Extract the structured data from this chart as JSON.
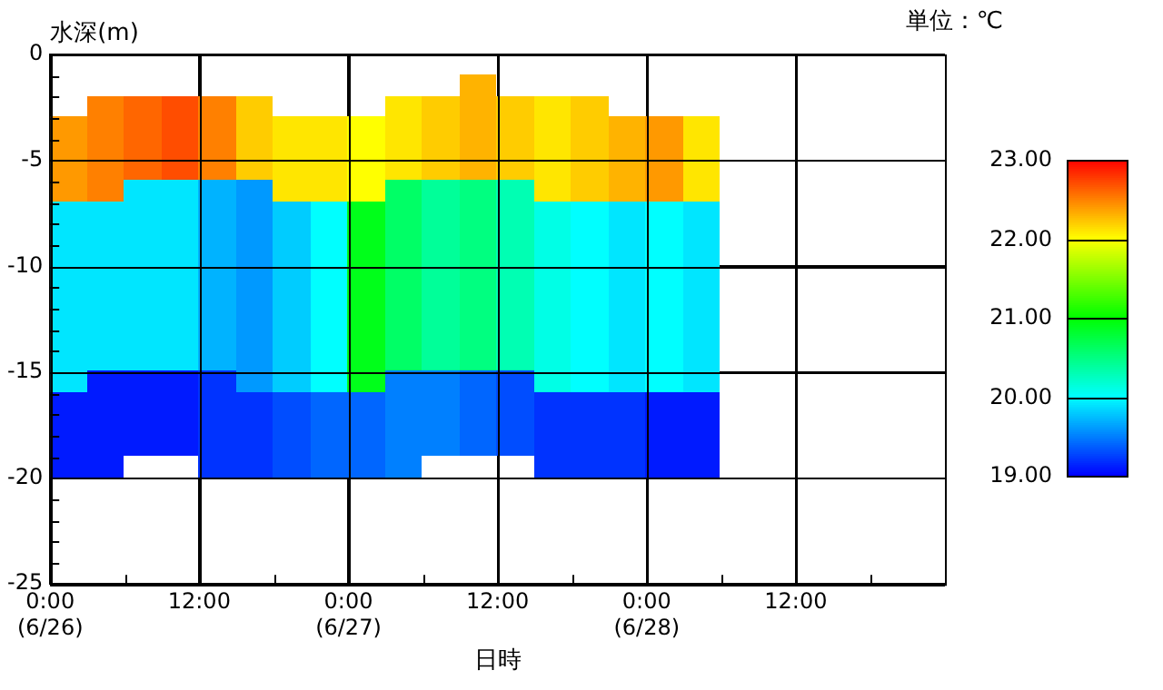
{
  "chart_data": {
    "type": "scatter",
    "ylabel": "水深(m)",
    "xlabel": "日時",
    "clabel": "単位：℃",
    "marker": "square",
    "x": [
      "--06-26T01:30",
      "--06-26T01:30",
      "--06-26T01:30",
      "--06-26T01:30",
      "--06-26T01:30",
      "--06-26T01:30",
      "--06-26T01:30",
      "--06-26T01:30",
      "--06-26T01:30",
      "--06-26T01:30",
      "--06-26T01:30",
      "--06-26T01:30",
      "--06-26T01:30",
      "--06-26T01:30",
      "--06-26T01:30",
      "--06-26T01:30",
      "--06-26T01:30",
      "--06-26T04:30",
      "--06-26T04:30",
      "--06-26T04:30",
      "--06-26T04:30",
      "--06-26T04:30",
      "--06-26T04:30",
      "--06-26T04:30",
      "--06-26T04:30",
      "--06-26T04:30",
      "--06-26T04:30",
      "--06-26T04:30",
      "--06-26T04:30",
      "--06-26T04:30",
      "--06-26T04:30",
      "--06-26T04:30",
      "--06-26T04:30",
      "--06-26T04:30",
      "--06-26T04:30",
      "--06-26T07:30",
      "--06-26T07:30",
      "--06-26T07:30",
      "--06-26T07:30",
      "--06-26T07:30",
      "--06-26T07:30",
      "--06-26T07:30",
      "--06-26T07:30",
      "--06-26T07:30",
      "--06-26T07:30",
      "--06-26T07:30",
      "--06-26T07:30",
      "--06-26T07:30",
      "--06-26T07:30",
      "--06-26T07:30",
      "--06-26T07:30",
      "--06-26T07:30",
      "--06-26T10:30",
      "--06-26T10:30",
      "--06-26T10:30",
      "--06-26T10:30",
      "--06-26T10:30",
      "--06-26T10:30",
      "--06-26T10:30",
      "--06-26T10:30",
      "--06-26T10:30",
      "--06-26T10:30",
      "--06-26T10:30",
      "--06-26T10:30",
      "--06-26T10:30",
      "--06-26T10:30",
      "--06-26T10:30",
      "--06-26T10:30",
      "--06-26T10:30",
      "--06-26T13:30",
      "--06-26T13:30",
      "--06-26T13:30",
      "--06-26T13:30",
      "--06-26T13:30",
      "--06-26T13:30",
      "--06-26T13:30",
      "--06-26T13:30",
      "--06-26T13:30",
      "--06-26T13:30",
      "--06-26T13:30",
      "--06-26T13:30",
      "--06-26T13:30",
      "--06-26T13:30",
      "--06-26T13:30",
      "--06-26T13:30",
      "--06-26T13:30",
      "--06-26T13:30",
      "--06-26T16:30",
      "--06-26T16:30",
      "--06-26T16:30",
      "--06-26T16:30",
      "--06-26T16:30",
      "--06-26T16:30",
      "--06-26T16:30",
      "--06-26T16:30",
      "--06-26T16:30",
      "--06-26T16:30",
      "--06-26T16:30",
      "--06-26T16:30",
      "--06-26T16:30",
      "--06-26T16:30",
      "--06-26T16:30",
      "--06-26T16:30",
      "--06-26T16:30",
      "--06-26T16:30",
      "--06-26T19:30",
      "--06-26T19:30",
      "--06-26T19:30",
      "--06-26T19:30",
      "--06-26T19:30",
      "--06-26T19:30",
      "--06-26T19:30",
      "--06-26T19:30",
      "--06-26T19:30",
      "--06-26T19:30",
      "--06-26T19:30",
      "--06-26T19:30",
      "--06-26T19:30",
      "--06-26T19:30",
      "--06-26T19:30",
      "--06-26T19:30",
      "--06-26T19:30",
      "--06-26T22:30",
      "--06-26T22:30",
      "--06-26T22:30",
      "--06-26T22:30",
      "--06-26T22:30",
      "--06-26T22:30",
      "--06-26T22:30",
      "--06-26T22:30",
      "--06-26T22:30",
      "--06-26T22:30",
      "--06-26T22:30",
      "--06-26T22:30",
      "--06-26T22:30",
      "--06-26T22:30",
      "--06-26T22:30",
      "--06-26T22:30",
      "--06-26T22:30",
      "--06-27T01:30",
      "--06-27T01:30",
      "--06-27T01:30",
      "--06-27T01:30",
      "--06-27T01:30",
      "--06-27T01:30",
      "--06-27T01:30",
      "--06-27T01:30",
      "--06-27T01:30",
      "--06-27T01:30",
      "--06-27T01:30",
      "--06-27T01:30",
      "--06-27T01:30",
      "--06-27T01:30",
      "--06-27T01:30",
      "--06-27T01:30",
      "--06-27T01:30",
      "--06-27T04:30",
      "--06-27T04:30",
      "--06-27T04:30",
      "--06-27T04:30",
      "--06-27T04:30",
      "--06-27T04:30",
      "--06-27T04:30",
      "--06-27T04:30",
      "--06-27T04:30",
      "--06-27T04:30",
      "--06-27T04:30",
      "--06-27T04:30",
      "--06-27T04:30",
      "--06-27T04:30",
      "--06-27T04:30",
      "--06-27T04:30",
      "--06-27T04:30",
      "--06-27T04:30",
      "--06-27T07:30",
      "--06-27T07:30",
      "--06-27T07:30",
      "--06-27T07:30",
      "--06-27T07:30",
      "--06-27T07:30",
      "--06-27T07:30",
      "--06-27T07:30",
      "--06-27T07:30",
      "--06-27T07:30",
      "--06-27T07:30",
      "--06-27T07:30",
      "--06-27T07:30",
      "--06-27T07:30",
      "--06-27T07:30",
      "--06-27T07:30",
      "--06-27T07:30",
      "--06-27T10:30",
      "--06-27T10:30",
      "--06-27T10:30",
      "--06-27T10:30",
      "--06-27T10:30",
      "--06-27T10:30",
      "--06-27T10:30",
      "--06-27T10:30",
      "--06-27T10:30",
      "--06-27T10:30",
      "--06-27T10:30",
      "--06-27T10:30",
      "--06-27T10:30",
      "--06-27T10:30",
      "--06-27T10:30",
      "--06-27T10:30",
      "--06-27T10:30",
      "--06-27T10:30",
      "--06-27T13:30",
      "--06-27T13:30",
      "--06-27T13:30",
      "--06-27T13:30",
      "--06-27T13:30",
      "--06-27T13:30",
      "--06-27T13:30",
      "--06-27T13:30",
      "--06-27T13:30",
      "--06-27T13:30",
      "--06-27T13:30",
      "--06-27T13:30",
      "--06-27T13:30",
      "--06-27T13:30",
      "--06-27T13:30",
      "--06-27T13:30",
      "--06-27T13:30",
      "--06-27T16:30",
      "--06-27T16:30",
      "--06-27T16:30",
      "--06-27T16:30",
      "--06-27T16:30",
      "--06-27T16:30",
      "--06-27T16:30",
      "--06-27T16:30",
      "--06-27T16:30",
      "--06-27T16:30",
      "--06-27T16:30",
      "--06-27T16:30",
      "--06-27T16:30",
      "--06-27T16:30",
      "--06-27T16:30",
      "--06-27T16:30",
      "--06-27T16:30",
      "--06-27T16:30",
      "--06-27T19:30",
      "--06-27T19:30",
      "--06-27T19:30",
      "--06-27T19:30",
      "--06-27T19:30",
      "--06-27T19:30",
      "--06-27T19:30",
      "--06-27T19:30",
      "--06-27T19:30",
      "--06-27T19:30",
      "--06-27T19:30",
      "--06-27T19:30",
      "--06-27T19:30",
      "--06-27T19:30",
      "--06-27T19:30",
      "--06-27T19:30",
      "--06-27T19:30",
      "--06-27T19:30",
      "--06-27T22:30",
      "--06-27T22:30",
      "--06-27T22:30",
      "--06-27T22:30",
      "--06-27T22:30",
      "--06-27T22:30",
      "--06-27T22:30",
      "--06-27T22:30",
      "--06-27T22:30",
      "--06-27T22:30",
      "--06-27T22:30",
      "--06-27T22:30",
      "--06-27T22:30",
      "--06-27T22:30",
      "--06-27T22:30",
      "--06-27T22:30",
      "--06-27T22:30",
      "--06-28T01:30",
      "--06-28T01:30",
      "--06-28T01:30",
      "--06-28T01:30",
      "--06-28T01:30",
      "--06-28T01:30",
      "--06-28T01:30",
      "--06-28T01:30",
      "--06-28T01:30",
      "--06-28T01:30",
      "--06-28T01:30",
      "--06-28T01:30",
      "--06-28T01:30",
      "--06-28T01:30",
      "--06-28T01:30",
      "--06-28T01:30",
      "--06-28T01:30",
      "--06-28T04:30",
      "--06-28T04:30",
      "--06-28T04:30",
      "--06-28T04:30",
      "--06-28T04:30",
      "--06-28T04:30",
      "--06-28T04:30",
      "--06-28T04:30",
      "--06-28T04:30",
      "--06-28T04:30",
      "--06-28T04:30",
      "--06-28T04:30",
      "--06-28T04:30",
      "--06-28T04:30",
      "--06-28T04:30",
      "--06-28T04:30",
      "--06-28T04:30"
    ],
    "values": [
      -3.5,
      -4.5,
      -5.5,
      -6.5,
      -7.5,
      -8.5,
      -9.5,
      -10.5,
      -11.5,
      -12.5,
      -13.5,
      -14.5,
      -15.5,
      -16.5,
      -17.5,
      -18.5,
      -19.5,
      -2.5,
      -3.5,
      -4.5,
      -5.5,
      -6.5,
      -7.5,
      -8.5,
      -9.5,
      -10.5,
      -11.5,
      -12.5,
      -13.5,
      -14.5,
      -15.5,
      -16.5,
      -17.5,
      -18.5,
      -19.5,
      -2.5,
      -3.5,
      -4.5,
      -5.5,
      -6.5,
      -7.5,
      -8.5,
      -9.5,
      -10.5,
      -11.5,
      -12.5,
      -13.5,
      -14.5,
      -15.5,
      -16.5,
      -17.5,
      -18.5,
      -2.5,
      -3.5,
      -4.5,
      -5.5,
      -6.5,
      -7.5,
      -8.5,
      -9.5,
      -10.5,
      -11.5,
      -12.5,
      -13.5,
      -14.5,
      -15.5,
      -16.5,
      -17.5,
      -18.5,
      -2.5,
      -3.5,
      -4.5,
      -5.5,
      -6.5,
      -7.5,
      -8.5,
      -9.5,
      -10.5,
      -11.5,
      -12.5,
      -13.5,
      -14.5,
      -15.5,
      -16.5,
      -17.5,
      -18.5,
      -19.5,
      -2.5,
      -3.5,
      -4.5,
      -5.5,
      -6.5,
      -7.5,
      -8.5,
      -9.5,
      -10.5,
      -11.5,
      -12.5,
      -13.5,
      -14.5,
      -15.5,
      -16.5,
      -17.5,
      -18.5,
      -19.5,
      -3.5,
      -4.5,
      -5.5,
      -6.5,
      -7.5,
      -8.5,
      -9.5,
      -10.5,
      -11.5,
      -12.5,
      -13.5,
      -14.5,
      -15.5,
      -16.5,
      -17.5,
      -18.5,
      -19.5,
      -3.5,
      -4.5,
      -5.5,
      -6.5,
      -7.5,
      -8.5,
      -9.5,
      -10.5,
      -11.5,
      -12.5,
      -13.5,
      -14.5,
      -15.5,
      -16.5,
      -17.5,
      -18.5,
      -19.5,
      -3.5,
      -4.5,
      -5.5,
      -6.5,
      -7.5,
      -8.5,
      -9.5,
      -10.5,
      -11.5,
      -12.5,
      -13.5,
      -14.5,
      -15.5,
      -16.5,
      -17.5,
      -18.5,
      -19.5,
      -2.5,
      -3.5,
      -4.5,
      -5.5,
      -6.5,
      -7.5,
      -8.5,
      -9.5,
      -10.5,
      -11.5,
      -12.5,
      -13.5,
      -14.5,
      -15.5,
      -16.5,
      -17.5,
      -18.5,
      -19.5,
      -2.5,
      -3.5,
      -4.5,
      -5.5,
      -6.5,
      -7.5,
      -8.5,
      -9.5,
      -10.5,
      -11.5,
      -12.5,
      -13.5,
      -14.5,
      -15.5,
      -16.5,
      -17.5,
      -18.5,
      -1.5,
      -2.5,
      -3.5,
      -4.5,
      -5.5,
      -6.5,
      -7.5,
      -8.5,
      -9.5,
      -10.5,
      -11.5,
      -12.5,
      -13.5,
      -14.5,
      -15.5,
      -16.5,
      -17.5,
      -18.5,
      -2.5,
      -3.5,
      -4.5,
      -5.5,
      -6.5,
      -7.5,
      -8.5,
      -9.5,
      -10.5,
      -11.5,
      -12.5,
      -13.5,
      -14.5,
      -15.5,
      -16.5,
      -17.5,
      -18.5,
      -2.5,
      -3.5,
      -4.5,
      -5.5,
      -6.5,
      -7.5,
      -8.5,
      -9.5,
      -10.5,
      -11.5,
      -12.5,
      -13.5,
      -14.5,
      -15.5,
      -16.5,
      -17.5,
      -18.5,
      -19.5,
      -2.5,
      -3.5,
      -4.5,
      -5.5,
      -6.5,
      -7.5,
      -8.5,
      -9.5,
      -10.5,
      -11.5,
      -12.5,
      -13.5,
      -14.5,
      -15.5,
      -16.5,
      -17.5,
      -18.5,
      -19.5,
      -3.5,
      -4.5,
      -5.5,
      -6.5,
      -7.5,
      -8.5,
      -9.5,
      -10.5,
      -11.5,
      -12.5,
      -13.5,
      -14.5,
      -15.5,
      -16.5,
      -17.5,
      -18.5,
      -19.5,
      -3.5,
      -4.5,
      -5.5,
      -6.5,
      -7.5,
      -8.5,
      -9.5,
      -10.5,
      -11.5,
      -12.5,
      -13.5,
      -14.5,
      -15.5,
      -16.5,
      -17.5,
      -18.5,
      -19.5,
      -3.5,
      -4.5,
      -5.5,
      -6.5,
      -7.5,
      -8.5,
      -9.5,
      -10.5,
      -11.5,
      -12.5,
      -13.5,
      -14.5,
      -15.5,
      -16.5,
      -17.5,
      -18.5,
      -19.5
    ],
    "cvalues": [
      22.4,
      22.4,
      22.4,
      22.4,
      19.9,
      19.9,
      19.9,
      19.9,
      19.9,
      19.9,
      19.9,
      19.9,
      19.9,
      19.1,
      19.1,
      19.1,
      19.1,
      22.5,
      22.5,
      22.5,
      22.5,
      22.5,
      19.9,
      19.9,
      19.9,
      19.9,
      19.9,
      19.9,
      19.9,
      19.9,
      19.1,
      19.1,
      19.1,
      19.1,
      19.1,
      22.6,
      22.6,
      22.6,
      22.6,
      19.9,
      19.9,
      19.9,
      19.9,
      19.9,
      19.9,
      19.9,
      19.9,
      19.9,
      19.1,
      19.1,
      19.1,
      19.1,
      22.7,
      22.7,
      22.7,
      22.7,
      19.9,
      19.9,
      19.9,
      19.9,
      19.9,
      19.9,
      19.9,
      19.9,
      19.9,
      19.1,
      19.1,
      19.1,
      19.1,
      22.5,
      22.5,
      22.5,
      22.5,
      19.7,
      19.7,
      19.7,
      19.7,
      19.7,
      19.7,
      19.7,
      19.7,
      19.7,
      19.2,
      19.2,
      19.2,
      19.2,
      19.2,
      22.2,
      22.2,
      22.2,
      22.2,
      19.6,
      19.6,
      19.6,
      19.6,
      19.6,
      19.6,
      19.6,
      19.6,
      19.6,
      19.6,
      19.2,
      19.2,
      19.2,
      19.2,
      22.1,
      22.1,
      22.1,
      22.1,
      19.8,
      19.8,
      19.8,
      19.8,
      19.8,
      19.8,
      19.8,
      19.8,
      19.8,
      19.3,
      19.3,
      19.3,
      19.3,
      22.1,
      22.1,
      22.1,
      22.1,
      20.0,
      20.0,
      20.0,
      20.0,
      20.0,
      20.0,
      20.0,
      20.0,
      20.0,
      19.4,
      19.4,
      19.4,
      19.4,
      22.0,
      22.0,
      22.0,
      22.0,
      20.9,
      20.9,
      20.9,
      20.9,
      20.9,
      20.9,
      20.9,
      20.9,
      20.9,
      19.4,
      19.4,
      19.4,
      19.4,
      22.1,
      22.1,
      22.1,
      22.1,
      20.6,
      20.6,
      20.6,
      20.6,
      20.6,
      20.6,
      20.6,
      20.6,
      20.6,
      19.5,
      19.5,
      19.5,
      19.5,
      19.5,
      22.2,
      22.2,
      22.2,
      22.2,
      20.4,
      20.4,
      20.4,
      20.4,
      20.4,
      20.4,
      20.4,
      20.4,
      20.4,
      19.5,
      19.5,
      19.5,
      19.5,
      22.3,
      22.3,
      22.3,
      22.3,
      22.3,
      20.5,
      20.5,
      20.5,
      20.5,
      20.5,
      20.5,
      20.5,
      20.5,
      20.5,
      19.4,
      19.4,
      19.4,
      19.4,
      22.2,
      22.2,
      22.2,
      22.2,
      20.3,
      20.3,
      20.3,
      20.3,
      20.3,
      20.3,
      20.3,
      20.3,
      20.3,
      19.3,
      19.3,
      19.3,
      19.3,
      22.1,
      22.1,
      22.1,
      22.1,
      22.1,
      20.1,
      20.1,
      20.1,
      20.1,
      20.1,
      20.1,
      20.1,
      20.1,
      20.1,
      19.2,
      19.2,
      19.2,
      19.2,
      22.2,
      22.2,
      22.2,
      22.2,
      22.2,
      20.0,
      20.0,
      20.0,
      20.0,
      20.0,
      20.0,
      20.0,
      20.0,
      20.0,
      19.2,
      19.2,
      19.2,
      19.2,
      22.3,
      22.3,
      22.3,
      22.3,
      19.9,
      19.9,
      19.9,
      19.9,
      19.9,
      19.9,
      19.9,
      19.9,
      19.9,
      19.2,
      19.2,
      19.2,
      19.2,
      22.4,
      22.4,
      22.4,
      22.4,
      20.0,
      20.0,
      20.0,
      20.0,
      20.0,
      20.0,
      20.0,
      20.0,
      20.0,
      19.1,
      19.1,
      19.1,
      19.1,
      22.1,
      22.1,
      22.1,
      22.1,
      19.9,
      19.9,
      19.9,
      19.9,
      19.9,
      19.9,
      19.9,
      19.9,
      19.9,
      19.1,
      19.1,
      19.1,
      19.1
    ],
    "xlim": [
      "--06-26T00:00",
      "--06-29T00:00"
    ],
    "xticks": [
      {
        "value": "--06-26T00:00",
        "label": "0:00\n(6/26)"
      },
      {
        "value": "--06-26T06:00",
        "label": null
      },
      {
        "value": "--06-26T12:00",
        "label": "12:00"
      },
      {
        "value": "--06-26T18:00",
        "label": null
      },
      {
        "value": "--06-27T00:00",
        "label": "0:00\n(6/27)"
      },
      {
        "value": "--06-27T06:00",
        "label": null
      },
      {
        "value": "--06-27T12:00",
        "label": "12:00"
      },
      {
        "value": "--06-27T18:00",
        "label": null
      },
      {
        "value": "--06-28T00:00",
        "label": "0:00\n(6/28)"
      },
      {
        "value": "--06-28T06:00",
        "label": null
      },
      {
        "value": "--06-28T12:00",
        "label": "12:00"
      },
      {
        "value": "--06-28T18:00",
        "label": null
      }
    ],
    "ylim": [
      -25,
      0
    ],
    "yticks": [
      -25,
      {
        "value": -24,
        "label": null
      },
      {
        "value": -23,
        "label": null
      },
      {
        "value": -22,
        "label": null
      },
      {
        "value": -21,
        "label": null
      },
      -20,
      {
        "value": -19,
        "label": null
      },
      {
        "value": -18,
        "label": null
      },
      {
        "value": -17,
        "label": null
      },
      {
        "value": -16,
        "label": null
      },
      -15,
      {
        "value": -14,
        "label": null
      },
      {
        "value": -13,
        "label": null
      },
      {
        "value": -12,
        "label": null
      },
      {
        "value": -11,
        "label": null
      },
      -10,
      {
        "value": -9,
        "label": null
      },
      {
        "value": -8,
        "label": null
      },
      {
        "value": -7,
        "label": null
      },
      {
        "value": -6,
        "label": null
      },
      -5,
      {
        "value": -4,
        "label": null
      },
      {
        "value": -3,
        "label": null
      },
      {
        "value": -2,
        "label": null
      },
      {
        "value": -1,
        "label": null
      },
      0
    ],
    "clim": [
      19,
      23
    ],
    "cticks": [
      {
        "value": 19,
        "label": "19.00"
      },
      {
        "value": 20,
        "label": "20.00"
      },
      {
        "value": 21,
        "label": "21.00"
      },
      {
        "value": 22,
        "label": "22.00"
      },
      {
        "value": 23,
        "label": "23.00"
      }
    ],
    "grid": true
  }
}
